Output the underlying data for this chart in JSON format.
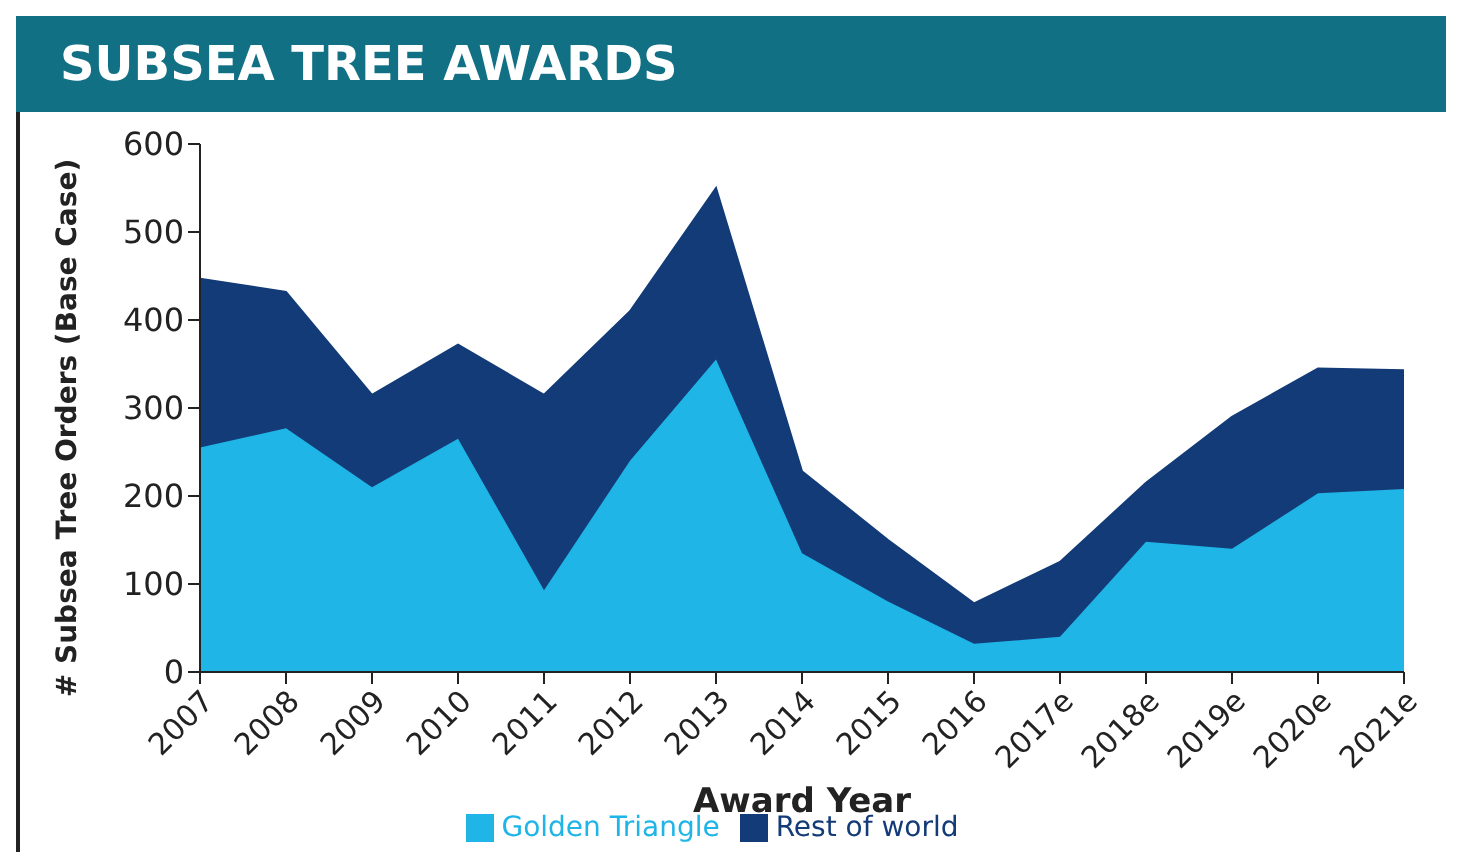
{
  "chart_data": {
    "type": "area",
    "title": "SUBSEA TREE AWARDS",
    "xlabel": "Award Year",
    "ylabel": "# Subsea Tree Orders (Base Case)",
    "categories": [
      "2007",
      "2008",
      "2009",
      "2010",
      "2011",
      "2012",
      "2013",
      "2014",
      "2015",
      "2016",
      "2017e",
      "2018e",
      "2019e",
      "2020e",
      "2021e"
    ],
    "stacked": true,
    "series": [
      {
        "name": "Golden Triangle",
        "color": "#1fb5e6",
        "values": [
          255,
          277,
          210,
          265,
          93,
          240,
          355,
          135,
          80,
          32,
          40,
          148,
          140,
          203,
          208
        ]
      },
      {
        "name": "Rest of world",
        "color": "#123b78",
        "values": [
          192,
          155,
          105,
          107,
          222,
          170,
          195,
          93,
          70,
          46,
          85,
          67,
          150,
          142,
          135
        ]
      }
    ],
    "ylim": [
      0,
      600
    ],
    "yticks": [
      0,
      100,
      200,
      300,
      400,
      500,
      600
    ],
    "grid": false,
    "legend": "bottom"
  }
}
